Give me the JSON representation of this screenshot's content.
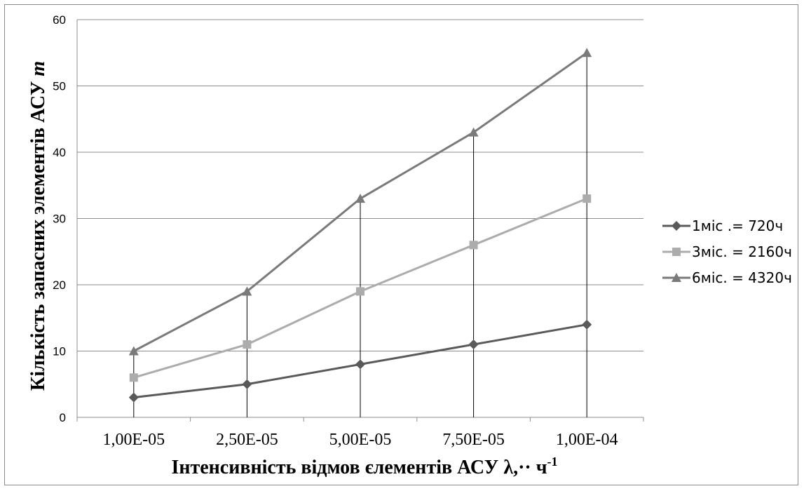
{
  "chart_data": {
    "type": "line",
    "categories": [
      "1,00E-05",
      "2,50E-05",
      "5,00E-05",
      "7,50E-05",
      "1,00E-04"
    ],
    "series": [
      {
        "name": "1міс .= 720ч",
        "values": [
          3,
          5,
          8,
          11,
          14
        ],
        "color": "#5a5a5a",
        "marker": "diamond"
      },
      {
        "name": "3міс. = 2160ч",
        "values": [
          6,
          11,
          19,
          26,
          33
        ],
        "color": "#acacac",
        "marker": "square"
      },
      {
        "name": "6міс. = 4320ч",
        "values": [
          10,
          19,
          33,
          43,
          55
        ],
        "color": "#7a7a7a",
        "marker": "triangle"
      }
    ],
    "xlabel": "Інтенсивність відмов єлементів АСУ λ,·· ч",
    "xlabel_superscript": "-1",
    "ylabel": "Кількість запасних элементів АСУ",
    "ylabel_italic": "m",
    "ylim": [
      0,
      60
    ],
    "yticks": [
      0,
      10,
      20,
      30,
      40,
      50,
      60
    ],
    "grid": "horizontal",
    "drop_lines": true,
    "legend_position": "right"
  }
}
